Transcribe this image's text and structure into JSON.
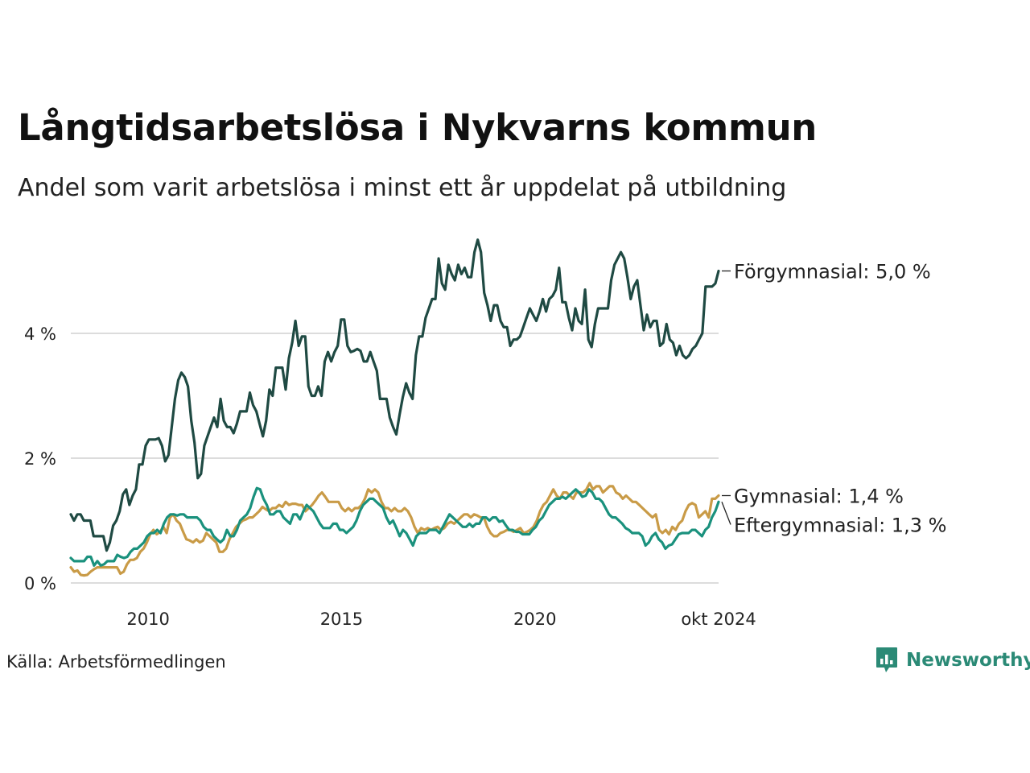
{
  "title": "Långtidsarbetslösa i Nykvarns kommun",
  "subtitle": "Andel som varit arbetslösa i minst ett år uppdelat på utbildning",
  "source": "Källa: Arbetsförmedlingen",
  "brand": {
    "name": "Newsworthy",
    "color": "#2b8a76"
  },
  "chart_data": {
    "type": "line",
    "x_start": 2008.0,
    "x_end": 2024.75,
    "xlim": [
      2008.0,
      2024.75
    ],
    "ylim": [
      0,
      5.6
    ],
    "grid": true,
    "y_ticks": [
      {
        "value": 0,
        "label": "0 %"
      },
      {
        "value": 2,
        "label": "2 %"
      },
      {
        "value": 4,
        "label": "4 %"
      }
    ],
    "x_ticks": [
      {
        "value": 2010,
        "label": "2010"
      },
      {
        "value": 2015,
        "label": "2015"
      },
      {
        "value": 2020,
        "label": "2020"
      },
      {
        "value": 2024.75,
        "label": "okt 2024"
      }
    ],
    "series": [
      {
        "name": "Förgymnasial",
        "label": "Förgymnasial: 5,0 %",
        "color": "#1f4a43",
        "values": [
          1.1,
          1.0,
          1.1,
          1.1,
          1.0,
          1.0,
          1.0,
          0.75,
          0.75,
          0.75,
          0.75,
          0.52,
          0.65,
          0.92,
          1.0,
          1.15,
          1.42,
          1.5,
          1.25,
          1.4,
          1.5,
          1.9,
          1.9,
          2.2,
          2.3,
          2.3,
          2.3,
          2.32,
          2.2,
          1.95,
          2.05,
          2.5,
          2.95,
          3.25,
          3.37,
          3.3,
          3.15,
          2.6,
          2.25,
          1.68,
          1.75,
          2.2,
          2.35,
          2.5,
          2.65,
          2.5,
          2.95,
          2.6,
          2.5,
          2.5,
          2.4,
          2.55,
          2.75,
          2.75,
          2.75,
          3.05,
          2.85,
          2.75,
          2.55,
          2.35,
          2.6,
          3.1,
          3.0,
          3.45,
          3.45,
          3.45,
          3.1,
          3.6,
          3.85,
          4.2,
          3.8,
          3.95,
          3.95,
          3.15,
          3.0,
          3.0,
          3.15,
          3.0,
          3.55,
          3.7,
          3.55,
          3.7,
          3.8,
          4.22,
          4.22,
          3.8,
          3.7,
          3.72,
          3.75,
          3.72,
          3.55,
          3.55,
          3.7,
          3.55,
          3.4,
          2.95,
          2.95,
          2.95,
          2.65,
          2.5,
          2.38,
          2.7,
          2.98,
          3.2,
          3.05,
          2.95,
          3.65,
          3.95,
          3.95,
          4.25,
          4.4,
          4.55,
          4.55,
          5.2,
          4.8,
          4.7,
          5.1,
          4.95,
          4.85,
          5.1,
          4.95,
          5.05,
          4.9,
          4.9,
          5.3,
          5.5,
          5.3,
          4.65,
          4.45,
          4.2,
          4.45,
          4.45,
          4.2,
          4.1,
          4.1,
          3.8,
          3.9,
          3.9,
          3.95,
          4.1,
          4.25,
          4.4,
          4.3,
          4.2,
          4.35,
          4.55,
          4.35,
          4.55,
          4.6,
          4.7,
          5.05,
          4.5,
          4.5,
          4.25,
          4.05,
          4.4,
          4.2,
          4.15,
          4.7,
          3.9,
          3.78,
          4.15,
          4.4,
          4.4,
          4.4,
          4.4,
          4.85,
          5.1,
          5.2,
          5.3,
          5.2,
          4.9,
          4.55,
          4.75,
          4.85,
          4.45,
          4.05,
          4.3,
          4.1,
          4.2,
          4.2,
          3.8,
          3.85,
          4.15,
          3.9,
          3.85,
          3.65,
          3.8,
          3.65,
          3.6,
          3.65,
          3.75,
          3.8,
          3.9,
          4.0,
          4.75,
          4.75,
          4.75,
          4.8,
          5.0
        ]
      },
      {
        "name": "Gymnasial",
        "label": "Gymnasial: 1,4 %",
        "color": "#c99b47",
        "values": [
          0.25,
          0.18,
          0.2,
          0.13,
          0.12,
          0.13,
          0.18,
          0.22,
          0.25,
          0.25,
          0.25,
          0.25,
          0.25,
          0.25,
          0.25,
          0.15,
          0.18,
          0.3,
          0.37,
          0.37,
          0.4,
          0.5,
          0.55,
          0.65,
          0.78,
          0.85,
          0.78,
          0.82,
          0.9,
          0.8,
          1.05,
          1.1,
          1.0,
          0.95,
          0.82,
          0.7,
          0.68,
          0.65,
          0.7,
          0.65,
          0.68,
          0.8,
          0.75,
          0.7,
          0.65,
          0.5,
          0.5,
          0.55,
          0.7,
          0.8,
          0.9,
          0.95,
          1.0,
          1.02,
          1.05,
          1.05,
          1.1,
          1.15,
          1.22,
          1.18,
          1.15,
          1.2,
          1.2,
          1.25,
          1.22,
          1.3,
          1.25,
          1.27,
          1.27,
          1.25,
          1.25,
          1.15,
          1.2,
          1.25,
          1.32,
          1.4,
          1.45,
          1.38,
          1.3,
          1.3,
          1.3,
          1.3,
          1.2,
          1.15,
          1.2,
          1.15,
          1.2,
          1.2,
          1.25,
          1.35,
          1.5,
          1.45,
          1.5,
          1.45,
          1.3,
          1.2,
          1.2,
          1.15,
          1.2,
          1.15,
          1.15,
          1.2,
          1.15,
          1.05,
          0.9,
          0.8,
          0.88,
          0.85,
          0.88,
          0.85,
          0.88,
          0.9,
          0.85,
          0.88,
          0.95,
          0.98,
          0.95,
          1.0,
          1.05,
          1.1,
          1.1,
          1.05,
          1.1,
          1.08,
          1.05,
          1.05,
          0.9,
          0.8,
          0.75,
          0.75,
          0.8,
          0.82,
          0.85,
          0.85,
          0.82,
          0.85,
          0.88,
          0.8,
          0.82,
          0.85,
          0.9,
          1.0,
          1.15,
          1.25,
          1.3,
          1.4,
          1.5,
          1.4,
          1.35,
          1.45,
          1.45,
          1.4,
          1.35,
          1.45,
          1.45,
          1.45,
          1.5,
          1.6,
          1.5,
          1.55,
          1.55,
          1.45,
          1.5,
          1.55,
          1.55,
          1.45,
          1.42,
          1.35,
          1.4,
          1.35,
          1.3,
          1.3,
          1.25,
          1.2,
          1.15,
          1.1,
          1.05,
          1.1,
          0.85,
          0.8,
          0.85,
          0.78,
          0.9,
          0.85,
          0.95,
          1.0,
          1.15,
          1.25,
          1.28,
          1.25,
          1.05,
          1.1,
          1.15,
          1.05,
          1.35,
          1.35,
          1.4
        ]
      },
      {
        "name": "Eftergymnasial",
        "label": "Eftergymnasial: 1,3 %",
        "color": "#1a917d",
        "values": [
          0.4,
          0.35,
          0.35,
          0.35,
          0.35,
          0.42,
          0.42,
          0.28,
          0.35,
          0.28,
          0.3,
          0.35,
          0.35,
          0.35,
          0.45,
          0.42,
          0.4,
          0.42,
          0.5,
          0.55,
          0.55,
          0.6,
          0.65,
          0.75,
          0.8,
          0.8,
          0.85,
          0.8,
          0.95,
          1.05,
          1.1,
          1.1,
          1.08,
          1.1,
          1.1,
          1.05,
          1.05,
          1.05,
          1.05,
          1.0,
          0.9,
          0.85,
          0.85,
          0.75,
          0.7,
          0.65,
          0.7,
          0.85,
          0.75,
          0.75,
          0.85,
          1.0,
          1.05,
          1.1,
          1.2,
          1.38,
          1.52,
          1.5,
          1.35,
          1.25,
          1.1,
          1.1,
          1.15,
          1.15,
          1.05,
          1.0,
          0.95,
          1.1,
          1.1,
          1.02,
          1.15,
          1.25,
          1.2,
          1.15,
          1.05,
          0.95,
          0.88,
          0.88,
          0.88,
          0.95,
          0.95,
          0.85,
          0.85,
          0.8,
          0.85,
          0.9,
          1.0,
          1.15,
          1.25,
          1.3,
          1.35,
          1.35,
          1.3,
          1.25,
          1.2,
          1.05,
          0.95,
          1.0,
          0.88,
          0.75,
          0.85,
          0.8,
          0.7,
          0.6,
          0.75,
          0.8,
          0.8,
          0.8,
          0.85,
          0.85,
          0.85,
          0.8,
          0.9,
          1.0,
          1.1,
          1.05,
          1.0,
          0.95,
          0.9,
          0.9,
          0.95,
          0.9,
          0.95,
          0.95,
          1.05,
          1.05,
          1.0,
          1.05,
          1.05,
          0.98,
          1.0,
          0.92,
          0.85,
          0.85,
          0.82,
          0.82,
          0.78,
          0.78,
          0.78,
          0.85,
          0.9,
          1.0,
          1.05,
          1.15,
          1.25,
          1.3,
          1.35,
          1.35,
          1.38,
          1.35,
          1.4,
          1.45,
          1.5,
          1.45,
          1.38,
          1.4,
          1.5,
          1.45,
          1.35,
          1.35,
          1.3,
          1.2,
          1.1,
          1.05,
          1.05,
          1.0,
          0.95,
          0.88,
          0.85,
          0.8,
          0.8,
          0.8,
          0.75,
          0.6,
          0.65,
          0.75,
          0.8,
          0.7,
          0.65,
          0.55,
          0.6,
          0.62,
          0.7,
          0.78,
          0.8,
          0.8,
          0.8,
          0.85,
          0.85,
          0.8,
          0.75,
          0.85,
          0.9,
          1.05,
          1.15,
          1.3
        ]
      }
    ]
  }
}
